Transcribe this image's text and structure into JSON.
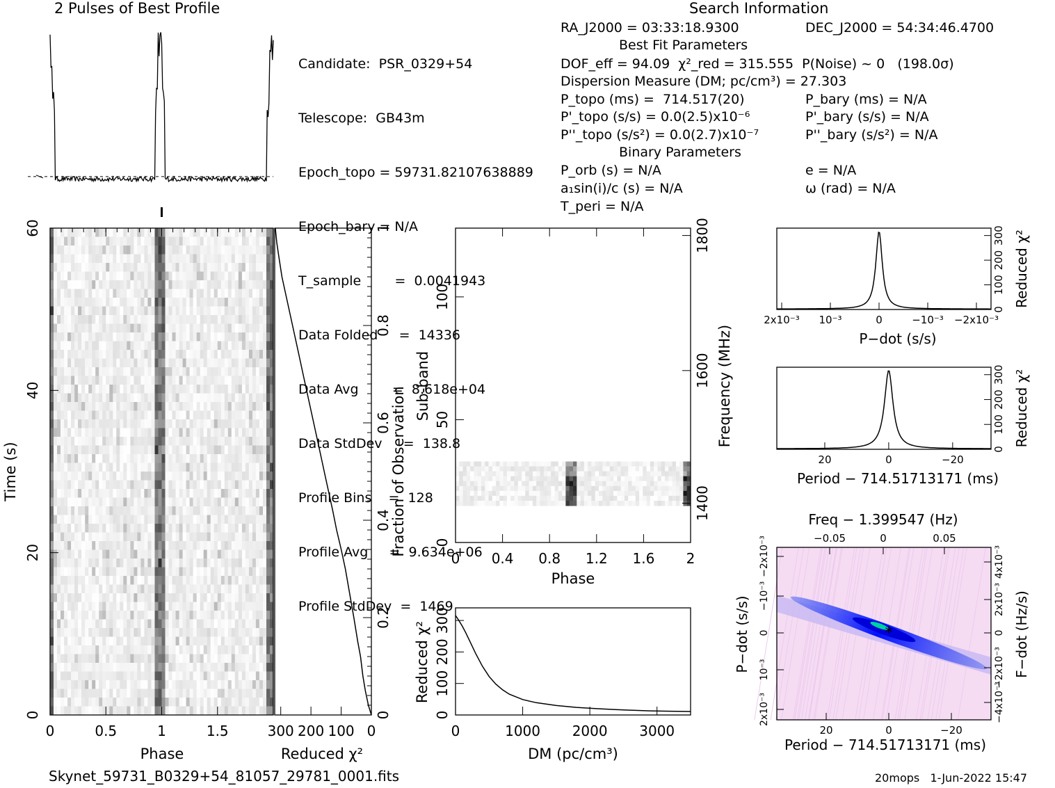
{
  "header": {
    "profile_title": "2 Pulses of Best Profile",
    "search_title": "Search Information",
    "best_fit_title": "Best Fit Parameters",
    "binary_title": "Binary Parameters"
  },
  "info_col1": [
    "Candidate:  PSR_0329+54",
    "Telescope:  GB43m",
    "Epoch_topo = 59731.82107638889",
    "Epoch_bary = N/A",
    "T_sample        =  0.0041943",
    "Data Folded     =  14336",
    "Data Avg        =  8.618e+04",
    "Data StdDev     =  138.8",
    "Profile Bins    =  128",
    "Profile Avg     =  9.634e+06",
    "Profile StdDev  =  1469"
  ],
  "info_col2": [
    "RA_J2000 = 03:33:18.9300",
    "DOF_eff = 94.09  χ²_red = 315.555  P(Noise) ~ 0   (198.0σ)",
    "Dispersion Measure (DM; pc/cm³) = 27.303",
    "P_topo (ms) =  714.517(20)",
    "P'_topo (s/s) = 0.0(2.5)x10⁻⁶",
    "P''_topo (s/s²) = 0.0(2.7)x10⁻⁷",
    "P_orb (s) = N/A",
    "a₁sin(i)/c (s) = N/A",
    "T_peri = N/A"
  ],
  "info_col3": [
    "DEC_J2000 = 54:34:46.4700",
    "P_bary (ms) = N/A",
    "P'_bary (s/s) = N/A",
    "P''_bary (s/s²) = N/A",
    "e = N/A",
    "ω (rad) = N/A"
  ],
  "footer": {
    "filename": "Skynet_59731_B0329+54_81057_29781_0001.fits",
    "stamp": "20mops   1-Jun-2022 15:47"
  },
  "chart_data": [
    {
      "id": "profile",
      "type": "line",
      "title": "2 Pulses of Best Profile",
      "xlim": [
        0,
        2
      ],
      "ylim": [
        0,
        1
      ],
      "peak_phases": [
        0.0,
        0.985,
        1.985
      ],
      "baseline": 0.06,
      "noise_level": 0.09
    },
    {
      "id": "time-phase",
      "type": "heatmap",
      "xlabel": "Phase",
      "ylabel": "Time (s)",
      "xlim": [
        0,
        2
      ],
      "ylim": [
        0,
        60
      ],
      "xticks": [
        "0",
        "0.5",
        "1",
        "1.5"
      ],
      "yticks": [
        "0",
        "20",
        "40",
        "60"
      ],
      "pulse_phase": 0.985
    },
    {
      "id": "reduced-chi2-time",
      "type": "line",
      "xlabel": "Reduced χ²",
      "ylabel": "Fraction of Observation",
      "xlim": [
        320,
        0
      ],
      "ylim": [
        0,
        1
      ],
      "xticks": [
        "300",
        "200",
        "100",
        "0"
      ],
      "yticks": [
        "0",
        "0.2",
        "0.4",
        "0.6",
        "0.8",
        "1"
      ],
      "x": [
        0,
        10,
        20,
        28,
        36,
        45,
        58,
        72,
        86,
        100,
        115,
        128,
        142,
        156,
        170,
        184,
        198,
        212,
        226,
        240,
        254,
        268,
        282,
        296,
        306,
        313,
        318
      ],
      "y": [
        0.0,
        0.02,
        0.05,
        0.08,
        0.12,
        0.15,
        0.2,
        0.25,
        0.3,
        0.34,
        0.38,
        0.42,
        0.46,
        0.5,
        0.54,
        0.58,
        0.62,
        0.66,
        0.7,
        0.74,
        0.78,
        0.82,
        0.86,
        0.9,
        0.94,
        0.97,
        1.0
      ]
    },
    {
      "id": "subband-phase",
      "type": "heatmap",
      "xlabel": "Phase",
      "ylabel": "Sub-band",
      "ylabel2": "Frequency (MHz)",
      "xlim": [
        0,
        2
      ],
      "ylim": [
        0,
        128
      ],
      "xticks": [
        "0",
        "0.4",
        "0.8",
        "1.2",
        "1.6",
        "2"
      ],
      "yticks": [
        "0",
        "50",
        "100"
      ],
      "y2ticks": [
        "1400",
        "1600",
        "1800"
      ],
      "signal_subbands": [
        15,
        33
      ],
      "pulse_phase": 0.985
    },
    {
      "id": "dm-chi2",
      "type": "line",
      "xlabel": "DM (pc/cm³)",
      "ylabel": "Reduced χ²",
      "xlim": [
        0,
        3500
      ],
      "ylim": [
        0,
        340
      ],
      "xticks": [
        "0",
        "1000",
        "2000",
        "3000"
      ],
      "yticks": [
        "0",
        "100",
        "200",
        "300"
      ],
      "x": [
        0,
        50,
        100,
        150,
        200,
        300,
        400,
        500,
        600,
        700,
        800,
        1000,
        1200,
        1500,
        1800,
        2100,
        2500,
        2900,
        3200,
        3500
      ],
      "y": [
        316,
        300,
        282,
        262,
        240,
        195,
        155,
        122,
        98,
        80,
        66,
        49,
        39,
        30,
        24,
        20,
        16,
        13,
        12,
        11
      ]
    },
    {
      "id": "pdot-chi2",
      "type": "line",
      "xlabel": "P−dot (s/s)",
      "ylabel": "Reduced χ²",
      "xlim": [
        0.0021,
        -0.0023
      ],
      "ylim": [
        0,
        330
      ],
      "xticks": [
        "2x10⁻³",
        "10⁻³",
        "0",
        "−10⁻³",
        "−2x10⁻³"
      ],
      "yticks": [
        "0",
        "100",
        "200",
        "300"
      ],
      "peak": 316,
      "width": 8e-05
    },
    {
      "id": "period-chi2",
      "type": "line",
      "xlabel": "Period − 714.51713171 (ms)",
      "ylabel": "Reduced χ²",
      "xlim": [
        35,
        -32
      ],
      "ylim": [
        0,
        330
      ],
      "xticks": [
        "20",
        "0",
        "−20"
      ],
      "yticks": [
        "0",
        "100",
        "200",
        "300"
      ],
      "peak": 316,
      "width": 1.6
    },
    {
      "id": "period-pdot",
      "type": "heatmap",
      "xlabel": "Period − 714.51713171 (ms)",
      "ylabel": "P−dot (s/s)",
      "x2label": "Freq − 1.399547 (Hz)",
      "y2label": "F−dot (Hz/s)",
      "xticks": [
        "20",
        "0",
        "−20"
      ],
      "yticks": [
        "2x10⁻³",
        "10⁻³",
        "0",
        "−10⁻³",
        "−2x10⁻³"
      ],
      "x2ticks": [
        "−0.05",
        "0",
        "0.05"
      ],
      "y2ticks": [
        "−4x10⁻³",
        "−2x10⁻³",
        "0",
        "2x10⁻³",
        "4x10⁻³"
      ]
    }
  ],
  "colors": {
    "ink": "#000000",
    "heat_low": "#ffffff",
    "heat_high": "#000000"
  }
}
